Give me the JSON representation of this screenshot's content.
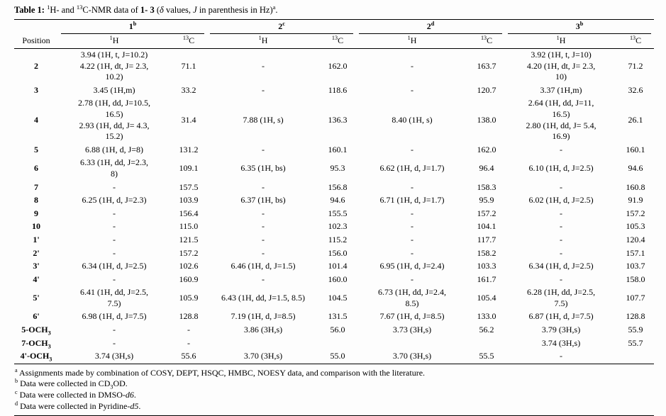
{
  "title": {
    "segments": [
      {
        "text": "Table 1: ",
        "style": "bold"
      },
      {
        "text": "1",
        "style": "sup"
      },
      {
        "text": "H- and ",
        "style": "normal"
      },
      {
        "text": "13",
        "style": "sup"
      },
      {
        "text": "C-NMR data of ",
        "style": "normal"
      },
      {
        "text": "1- 3",
        "style": "bold"
      },
      {
        "text": " (",
        "style": "normal"
      },
      {
        "text": "δ",
        "style": "italic"
      },
      {
        "text": " values, ",
        "style": "normal"
      },
      {
        "text": "J",
        "style": "italic"
      },
      {
        "text": " in parenthesis in Hz)",
        "style": "normal"
      },
      {
        "text": "a",
        "style": "sup"
      },
      {
        "text": ".",
        "style": "normal"
      }
    ]
  },
  "table": {
    "corner_label": "Position",
    "groups": [
      {
        "label": "1",
        "marker": "b"
      },
      {
        "label": "2",
        "marker": "c"
      },
      {
        "label": "2",
        "marker": "d"
      },
      {
        "label": "3",
        "marker": "b"
      }
    ],
    "subheaders": [
      {
        "sup": "1",
        "base": "H"
      },
      {
        "sup": "13",
        "base": "C"
      },
      {
        "sup": "1",
        "base": "H"
      },
      {
        "sup": "13",
        "base": "C"
      },
      {
        "sup": "1",
        "base": "H"
      },
      {
        "sup": "13",
        "base": "C"
      },
      {
        "sup": "1",
        "base": "H"
      },
      {
        "sup": "13",
        "base": "C"
      }
    ],
    "rows": [
      {
        "position": {
          "text": "2",
          "sub": ""
        },
        "cells": [
          "3.94 (1H, t, J=10.2)\n4.22 (1H, dt, J= 2.3,\n10.2)",
          "71.1",
          "-",
          "162.0",
          "-",
          "163.7",
          "3.92 (1H, t, J=10)\n4.20 (1H, dt, J= 2.3,\n10)",
          "71.2"
        ]
      },
      {
        "position": {
          "text": "3",
          "sub": ""
        },
        "cells": [
          "3.45 (1H,m)",
          "33.2",
          "-",
          "118.6",
          "-",
          "120.7",
          "3.37 (1H,m)",
          "32.6"
        ]
      },
      {
        "position": {
          "text": "4",
          "sub": ""
        },
        "cells": [
          "2.78 (1H, dd, J=10.5,\n16.5)\n2.93 (1H, dd, J= 4.3,\n15.2)",
          "31.4",
          "7.88 (1H, s)",
          "136.3",
          "8.40 (1H, s)",
          "138.0",
          "2.64 (1H, dd, J=11,\n16.5)\n2.80 (1H, dd, J= 5.4,\n16.9)",
          "26.1"
        ]
      },
      {
        "position": {
          "text": "5",
          "sub": ""
        },
        "cells": [
          "6.88 (1H, d, J=8)",
          "131.2",
          "-",
          "160.1",
          "-",
          "162.0",
          "-",
          "160.1"
        ]
      },
      {
        "position": {
          "text": "6",
          "sub": ""
        },
        "cells": [
          "6.33 (1H, dd, J=2.3,\n8)",
          "109.1",
          "6.35 (1H, bs)",
          "95.3",
          "6.62 (1H, d, J=1.7)",
          "96.4",
          "6.10 (1H, d, J=2.5)",
          "94.6"
        ]
      },
      {
        "position": {
          "text": "7",
          "sub": ""
        },
        "cells": [
          "-",
          "157.5",
          "-",
          "156.8",
          "-",
          "158.3",
          "-",
          "160.8"
        ]
      },
      {
        "position": {
          "text": "8",
          "sub": ""
        },
        "cells": [
          "6.25 (1H, d, J=2.3)",
          "103.9",
          "6.37 (1H, bs)",
          "94.6",
          "6.71 (1H, d, J=1.7)",
          "95.9",
          "6.02 (1H, d, J=2.5)",
          "91.9"
        ]
      },
      {
        "position": {
          "text": "9",
          "sub": ""
        },
        "cells": [
          "-",
          "156.4",
          "-",
          "155.5",
          "-",
          "157.2",
          "-",
          "157.2"
        ]
      },
      {
        "position": {
          "text": "10",
          "sub": ""
        },
        "cells": [
          "-",
          "115.0",
          "-",
          "102.3",
          "-",
          "104.1",
          "-",
          "105.3"
        ]
      },
      {
        "position": {
          "text": "1'",
          "sub": ""
        },
        "cells": [
          "-",
          "121.5",
          "-",
          "115.2",
          "-",
          "117.7",
          "-",
          "120.4"
        ]
      },
      {
        "position": {
          "text": "2'",
          "sub": ""
        },
        "cells": [
          "-",
          "157.2",
          "-",
          "156.0",
          "-",
          "158.2",
          "-",
          "157.1"
        ]
      },
      {
        "position": {
          "text": "3'",
          "sub": ""
        },
        "cells": [
          "6.34 (1H, d, J=2.5)",
          "102.6",
          "6.46 (1H, d, J=1.5)",
          "101.4",
          "6.95 (1H, d, J=2.4)",
          "103.3",
          "6.34 (1H, d, J=2.5)",
          "103.7"
        ]
      },
      {
        "position": {
          "text": "4'",
          "sub": ""
        },
        "cells": [
          "-",
          "160.9",
          "-",
          "160.0",
          "-",
          "161.7",
          "-",
          "158.0"
        ]
      },
      {
        "position": {
          "text": "5'",
          "sub": ""
        },
        "cells": [
          "6.41 (1H, dd, J=2.5,\n7.5)",
          "105.9",
          "6.43 (1H, dd, J=1.5, 8.5)",
          "104.5",
          "6.73 (1H, dd, J=2.4,\n8.5)",
          "105.4",
          "6.28 (1H, dd, J=2.5,\n7.5)",
          "107.7"
        ]
      },
      {
        "position": {
          "text": "6'",
          "sub": ""
        },
        "cells": [
          "6.98 (1H, d, J=7.5)",
          "128.8",
          "7.19 (1H, d, J=8.5)",
          "131.5",
          "7.67 (1H, d, J=8.5)",
          "133.0",
          "6.87 (1H, d, J=7.5)",
          "128.8"
        ]
      },
      {
        "position": {
          "text": "5-OCH",
          "sub": "3"
        },
        "cells": [
          "-",
          "-",
          "3.86 (3H,s)",
          "56.0",
          "3.73 (3H,s)",
          "56.2",
          "3.79 (3H,s)",
          "55.9"
        ]
      },
      {
        "position": {
          "text": "7-OCH",
          "sub": "3"
        },
        "cells": [
          "-",
          "-",
          "",
          "",
          "",
          "",
          "3.74 (3H,s)",
          "55.7"
        ]
      },
      {
        "position": {
          "text": "4'-OCH",
          "sub": "3"
        },
        "cells": [
          "3.74 (3H,s)",
          "55.6",
          "3.70 (3H,s)",
          "55.0",
          "3.70 (3H,s)",
          "55.5",
          "-",
          ""
        ]
      }
    ]
  },
  "footnotes": [
    {
      "segments": [
        {
          "text": "a",
          "style": "sup"
        },
        {
          "text": " Assignments made by combination of COSY, DEPT, HSQC, HMBC, NOESY data, and comparison with the literature.",
          "style": "normal"
        }
      ]
    },
    {
      "segments": [
        {
          "text": "b",
          "style": "sup"
        },
        {
          "text": " Data were collected in CD",
          "style": "normal"
        },
        {
          "text": "3",
          "style": "sub"
        },
        {
          "text": "OD.",
          "style": "normal"
        }
      ]
    },
    {
      "segments": [
        {
          "text": "c",
          "style": "sup"
        },
        {
          "text": " Data were collected in DMSO-",
          "style": "normal"
        },
        {
          "text": "d6",
          "style": "italic"
        },
        {
          "text": ".",
          "style": "normal"
        }
      ]
    },
    {
      "segments": [
        {
          "text": "d",
          "style": "sup"
        },
        {
          "text": " Data were collected in Pyridine-",
          "style": "normal"
        },
        {
          "text": "d5",
          "style": "italic"
        },
        {
          "text": ".",
          "style": "normal"
        }
      ]
    }
  ]
}
